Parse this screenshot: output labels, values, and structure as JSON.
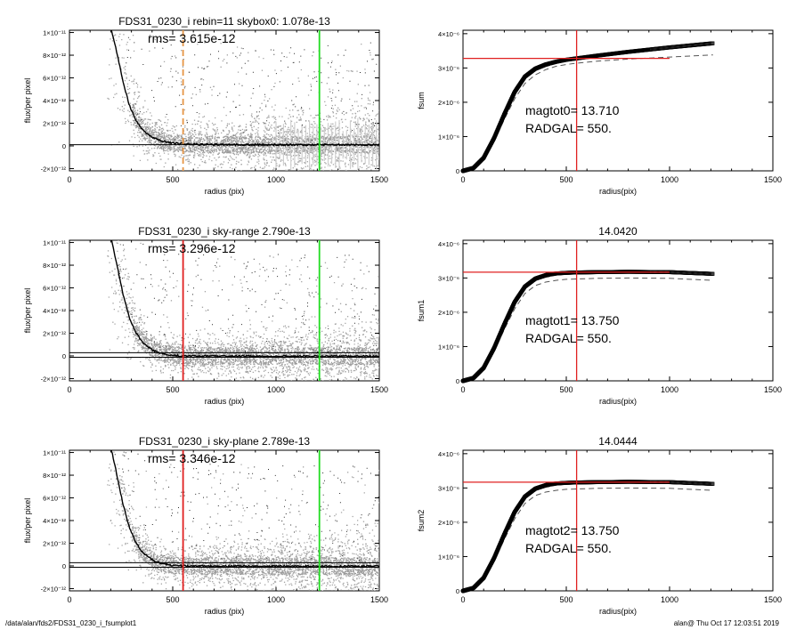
{
  "footer": {
    "path": "/data/alan/fds2/FDS31_0230_i_fsumplot1",
    "stamp": "alan@  Thu Oct 17 12:03:51 2019"
  },
  "colors": {
    "background": "#ffffff",
    "scatter_points": "#a6a6a6",
    "scatter_dark_points": "#2a2a2a",
    "profile": "#000000",
    "radius_marker_panel1": "#e69646",
    "radius_marker": "#e02020",
    "outer_limit": "#22dd22",
    "fsum_reference": "#e02020",
    "fsum_model": "#555555"
  },
  "chart_data": [
    {
      "type": "scatter",
      "title": "FDS31_0230_i rebin=11    skybox0:  1.078e-13",
      "annotation": "rms= 3.615e-12",
      "xlabel": "radius (pix)",
      "ylabel": "flux/per pixel",
      "xlim": [
        0,
        1500
      ],
      "ylim": [
        -2.2e-12,
        1.02e-11
      ],
      "x_ticks": [
        "0",
        "500",
        "1000",
        "1500"
      ],
      "y_ticks": [
        "-2×10⁻¹²",
        "0",
        "2×10⁻¹²",
        "4×10⁻¹²",
        "6×10⁻¹²",
        "8×10⁻¹²",
        "1×10⁻¹¹"
      ],
      "y_tick_values": [
        -2e-12,
        0,
        2e-12,
        4e-12,
        6e-12,
        8e-12,
        1e-11
      ],
      "sky_levels": [
        1.078e-13
      ],
      "radius_marker": {
        "x": 550,
        "style": "dashed",
        "color": "orange"
      },
      "outer_limit": {
        "x": 1210,
        "color": "green"
      },
      "profile_line": {
        "x": [
          200,
          230,
          260,
          290,
          320,
          350,
          380,
          410,
          450,
          500,
          550,
          650,
          800,
          1000,
          1200,
          1500
        ],
        "y": [
          1.05e-11,
          8.2e-12,
          5.6e-12,
          3.6e-12,
          2.3e-12,
          1.5e-12,
          1e-12,
          7e-13,
          4e-13,
          2.5e-13,
          1.8e-13,
          1.2e-13,
          1e-13,
          1e-13,
          1e-13,
          1e-13
        ]
      },
      "error_bars_from": 1000
    },
    {
      "type": "line",
      "title": "",
      "xlabel": "radius(pix)",
      "ylabel": "fsum",
      "xlim": [
        0,
        1500
      ],
      "ylim": [
        0,
        4.1e-06
      ],
      "x_ticks": [
        "0",
        "500",
        "1000",
        "1500"
      ],
      "y_ticks": [
        "0",
        "1×10⁻⁶",
        "2×10⁻⁶",
        "3×10⁻⁶",
        "4×10⁻⁶"
      ],
      "y_tick_values": [
        0,
        1e-06,
        2e-06,
        3e-06,
        4e-06
      ],
      "annotations": [
        "magtot0=  13.710",
        "RADGAL=    550."
      ],
      "radius_marker": {
        "x": 550
      },
      "reference_level": {
        "y": 3.28e-06,
        "x_range": [
          0,
          1000
        ]
      },
      "series": [
        {
          "style": "markers",
          "x_end": 1210,
          "points": [
            [
              0,
              0
            ],
            [
              50,
              8e-08
            ],
            [
              100,
              3.8e-07
            ],
            [
              150,
              9.5e-07
            ],
            [
              200,
              1.65e-06
            ],
            [
              250,
              2.3e-06
            ],
            [
              300,
              2.75e-06
            ],
            [
              350,
              2.98e-06
            ],
            [
              400,
              3.1e-06
            ],
            [
              450,
              3.18e-06
            ],
            [
              500,
              3.24e-06
            ],
            [
              550,
              3.28e-06
            ],
            [
              650,
              3.36e-06
            ],
            [
              800,
              3.47e-06
            ],
            [
              1000,
              3.6e-06
            ],
            [
              1210,
              3.72e-06
            ]
          ]
        },
        {
          "style": "dashed",
          "points": [
            [
              0,
              0
            ],
            [
              50,
              7e-08
            ],
            [
              100,
              3.5e-07
            ],
            [
              150,
              8.5e-07
            ],
            [
              200,
              1.5e-06
            ],
            [
              250,
              2.1e-06
            ],
            [
              300,
              2.55e-06
            ],
            [
              350,
              2.8e-06
            ],
            [
              400,
              2.95e-06
            ],
            [
              450,
              3.05e-06
            ],
            [
              500,
              3.1e-06
            ],
            [
              550,
              3.14e-06
            ],
            [
              650,
              3.2e-06
            ],
            [
              800,
              3.26e-06
            ],
            [
              1000,
              3.32e-06
            ],
            [
              1210,
              3.38e-06
            ]
          ]
        }
      ]
    },
    {
      "type": "scatter",
      "title": "FDS31_0230_i sky-range  2.790e-13",
      "annotation": "rms= 3.296e-12",
      "xlabel": "radius (pix)",
      "ylabel": "flux/per pixel",
      "xlim": [
        0,
        1500
      ],
      "ylim": [
        -2.2e-12,
        1.02e-11
      ],
      "x_ticks": [
        "0",
        "500",
        "1000",
        "1500"
      ],
      "y_ticks": [
        "-2×10⁻¹²",
        "0",
        "2×10⁻¹²",
        "4×10⁻¹²",
        "6×10⁻¹²",
        "8×10⁻¹²",
        "1×10⁻¹¹"
      ],
      "y_tick_values": [
        -2e-12,
        0,
        2e-12,
        4e-12,
        6e-12,
        8e-12,
        1e-11
      ],
      "sky_levels": [
        2.79e-13,
        -1.2e-13
      ],
      "radius_marker": {
        "x": 550,
        "style": "solid",
        "color": "red"
      },
      "outer_limit": {
        "x": 1210,
        "color": "green"
      },
      "profile_line": {
        "x": [
          200,
          230,
          260,
          290,
          320,
          350,
          380,
          410,
          450,
          500,
          550,
          650,
          800,
          1000,
          1200,
          1500
        ],
        "y": [
          1.05e-11,
          8e-12,
          5.4e-12,
          3.4e-12,
          2.1e-12,
          1.3e-12,
          8e-13,
          4.5e-13,
          2e-13,
          5e-14,
          0.0,
          -2e-14,
          -2e-14,
          -3e-14,
          -3e-14,
          -3e-14
        ]
      },
      "error_bars_from": 1600
    },
    {
      "type": "line",
      "title": "14.0420",
      "xlabel": "radius(pix)",
      "ylabel": "fsum1",
      "xlim": [
        0,
        1500
      ],
      "ylim": [
        0,
        4.1e-06
      ],
      "x_ticks": [
        "0",
        "500",
        "1000",
        "1500"
      ],
      "y_ticks": [
        "0",
        "1×10⁻⁶",
        "2×10⁻⁶",
        "3×10⁻⁶",
        "4×10⁻⁶"
      ],
      "y_tick_values": [
        0,
        1e-06,
        2e-06,
        3e-06,
        4e-06
      ],
      "annotations": [
        "magtot1=  13.750",
        "RADGAL=    550."
      ],
      "radius_marker": {
        "x": 550
      },
      "reference_level": {
        "y": 3.17e-06,
        "x_range": [
          0,
          1000
        ]
      },
      "series": [
        {
          "style": "markers",
          "x_end": 1210,
          "points": [
            [
              0,
              0
            ],
            [
              50,
              8e-08
            ],
            [
              100,
              3.8e-07
            ],
            [
              150,
              9.5e-07
            ],
            [
              200,
              1.65e-06
            ],
            [
              250,
              2.3e-06
            ],
            [
              300,
              2.75e-06
            ],
            [
              350,
              2.98e-06
            ],
            [
              400,
              3.08e-06
            ],
            [
              450,
              3.13e-06
            ],
            [
              500,
              3.15e-06
            ],
            [
              550,
              3.16e-06
            ],
            [
              650,
              3.17e-06
            ],
            [
              800,
              3.18e-06
            ],
            [
              1000,
              3.17e-06
            ],
            [
              1210,
              3.12e-06
            ]
          ]
        },
        {
          "style": "dashed",
          "points": [
            [
              0,
              0
            ],
            [
              50,
              7e-08
            ],
            [
              100,
              3.5e-07
            ],
            [
              150,
              8.5e-07
            ],
            [
              200,
              1.5e-06
            ],
            [
              250,
              2.1e-06
            ],
            [
              300,
              2.55e-06
            ],
            [
              350,
              2.78e-06
            ],
            [
              400,
              2.88e-06
            ],
            [
              450,
              2.93e-06
            ],
            [
              500,
              2.96e-06
            ],
            [
              550,
              2.97e-06
            ],
            [
              650,
              2.99e-06
            ],
            [
              800,
              3e-06
            ],
            [
              1000,
              2.99e-06
            ],
            [
              1210,
              2.93e-06
            ]
          ]
        }
      ]
    },
    {
      "type": "scatter",
      "title": "FDS31_0230_i sky-plane  2.789e-13",
      "annotation": "rms= 3.346e-12",
      "xlabel": "radius (pix)",
      "ylabel": "flux/per pixel",
      "xlim": [
        0,
        1500
      ],
      "ylim": [
        -2.2e-12,
        1.02e-11
      ],
      "x_ticks": [
        "0",
        "500",
        "1000",
        "1500"
      ],
      "y_ticks": [
        "-2×10⁻¹²",
        "0",
        "2×10⁻¹²",
        "4×10⁻¹²",
        "6×10⁻¹²",
        "8×10⁻¹²",
        "1×10⁻¹¹"
      ],
      "y_tick_values": [
        -2e-12,
        0,
        2e-12,
        4e-12,
        6e-12,
        8e-12,
        1e-11
      ],
      "sky_levels": [
        2.79e-13,
        -1.2e-13
      ],
      "radius_marker": {
        "x": 550,
        "style": "solid",
        "color": "red"
      },
      "outer_limit": {
        "x": 1210,
        "color": "green"
      },
      "profile_line": {
        "x": [
          200,
          230,
          260,
          290,
          320,
          350,
          380,
          410,
          450,
          500,
          550,
          650,
          800,
          1000,
          1200,
          1500
        ],
        "y": [
          1.05e-11,
          8e-12,
          5.4e-12,
          3.4e-12,
          2.1e-12,
          1.3e-12,
          8e-13,
          4.5e-13,
          2e-13,
          5e-14,
          0.0,
          -2e-14,
          -2e-14,
          -3e-14,
          -3e-14,
          -3e-14
        ]
      },
      "error_bars_from": 1600
    },
    {
      "type": "line",
      "title": "14.0444",
      "xlabel": "radius(pix)",
      "ylabel": "fsum2",
      "xlim": [
        0,
        1500
      ],
      "ylim": [
        0,
        4.1e-06
      ],
      "x_ticks": [
        "0",
        "500",
        "1000",
        "1500"
      ],
      "y_ticks": [
        "0",
        "1×10⁻⁶",
        "2×10⁻⁶",
        "3×10⁻⁶",
        "4×10⁻⁶"
      ],
      "y_tick_values": [
        0,
        1e-06,
        2e-06,
        3e-06,
        4e-06
      ],
      "annotations": [
        "magtot2=  13.750",
        "RADGAL=    550."
      ],
      "radius_marker": {
        "x": 550
      },
      "reference_level": {
        "y": 3.17e-06,
        "x_range": [
          0,
          1000
        ]
      },
      "series": [
        {
          "style": "markers",
          "x_end": 1210,
          "points": [
            [
              0,
              0
            ],
            [
              50,
              8e-08
            ],
            [
              100,
              3.8e-07
            ],
            [
              150,
              9.5e-07
            ],
            [
              200,
              1.65e-06
            ],
            [
              250,
              2.3e-06
            ],
            [
              300,
              2.75e-06
            ],
            [
              350,
              2.98e-06
            ],
            [
              400,
              3.08e-06
            ],
            [
              450,
              3.13e-06
            ],
            [
              500,
              3.15e-06
            ],
            [
              550,
              3.16e-06
            ],
            [
              650,
              3.17e-06
            ],
            [
              800,
              3.18e-06
            ],
            [
              1000,
              3.17e-06
            ],
            [
              1210,
              3.12e-06
            ]
          ]
        },
        {
          "style": "dashed",
          "points": [
            [
              0,
              0
            ],
            [
              50,
              7e-08
            ],
            [
              100,
              3.5e-07
            ],
            [
              150,
              8.5e-07
            ],
            [
              200,
              1.5e-06
            ],
            [
              250,
              2.1e-06
            ],
            [
              300,
              2.55e-06
            ],
            [
              350,
              2.78e-06
            ],
            [
              400,
              2.88e-06
            ],
            [
              450,
              2.93e-06
            ],
            [
              500,
              2.96e-06
            ],
            [
              550,
              2.97e-06
            ],
            [
              650,
              2.99e-06
            ],
            [
              800,
              3e-06
            ],
            [
              1000,
              2.99e-06
            ],
            [
              1210,
              2.93e-06
            ]
          ]
        }
      ]
    }
  ]
}
